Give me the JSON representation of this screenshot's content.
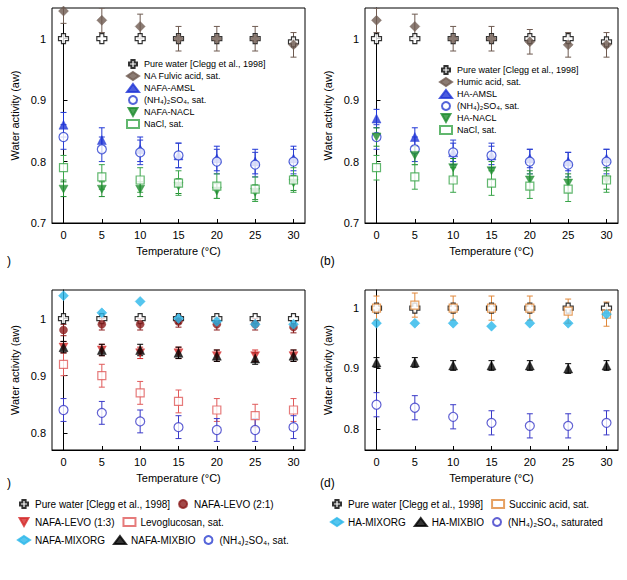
{
  "chart_data": [
    {
      "type": "scatter",
      "annotation": ")",
      "x_label": "Temperature (°C)",
      "y_label": "Water activity (aw)",
      "xlim": [
        -1.5,
        31.5
      ],
      "xticks": [
        0,
        5,
        10,
        15,
        20,
        25,
        30
      ],
      "ylim": [
        0.7,
        1.05
      ],
      "yticks": [
        0.7,
        0.8,
        0.9,
        1
      ],
      "grid": false,
      "legend": "right",
      "x": [
        0,
        5,
        10,
        15,
        20,
        25,
        30
      ],
      "series": [
        {
          "name": "Pure water [Clegg et al., 1998]",
          "color": "#000000",
          "marker": "cross-open",
          "values": [
            1.0,
            1.0,
            1.0,
            1.0,
            1.0,
            1.0,
            0.995
          ]
        },
        {
          "name": "NA Fulvic acid, sat.",
          "color": "#6e5a50",
          "marker": "diamond",
          "values": [
            1.045,
            1.03,
            1.02,
            1.0,
            1.0,
            1.0,
            0.99
          ],
          "errors": [
            0.02,
            0.02,
            0.02,
            0.02,
            0.02,
            0.02,
            0.02
          ]
        },
        {
          "name": "NAFA-AMSL",
          "color": "#1f35d6",
          "marker": "triangle",
          "values": [
            0.86,
            0.835,
            0.82,
            0.81,
            0.805,
            0.8,
            0.805
          ],
          "errors": [
            0.02,
            0.02,
            0.02,
            0.02,
            0.02,
            0.02,
            0.02
          ]
        },
        {
          "name": "(NH₄)₂SO₄, sat.",
          "color": "#2b3fd0",
          "marker": "circle-open",
          "values": [
            0.84,
            0.82,
            0.815,
            0.81,
            0.8,
            0.795,
            0.8
          ],
          "errors": [
            0.02,
            0.02,
            0.02,
            0.02,
            0.02,
            0.02,
            0.02
          ]
        },
        {
          "name": "NAFA-NACL",
          "color": "#1e8c2e",
          "marker": "triangle-down",
          "values": [
            0.755,
            0.755,
            0.755,
            0.76,
            0.752,
            0.75,
            0.765
          ],
          "errors": [
            0.012,
            0.012,
            0.012,
            0.012,
            0.012,
            0.012,
            0.012
          ]
        },
        {
          "name": "NaCl, sat.",
          "color": "#3aa54a",
          "marker": "square-open",
          "values": [
            0.79,
            0.775,
            0.77,
            0.765,
            0.76,
            0.755,
            0.77
          ],
          "errors": [
            0.02,
            0.02,
            0.02,
            0.02,
            0.02,
            0.02,
            0.02
          ]
        }
      ]
    },
    {
      "type": "scatter",
      "annotation": "(b)",
      "x_label": "Temperature (°C)",
      "y_label": "Water activity (aw)",
      "xlim": [
        -1.5,
        31.5
      ],
      "xticks": [
        0,
        5,
        10,
        15,
        20,
        25,
        30
      ],
      "ylim": [
        0.7,
        1.05
      ],
      "yticks": [
        0.7,
        0.8,
        0.9,
        1
      ],
      "grid": false,
      "legend": "right",
      "x": [
        0,
        5,
        10,
        15,
        20,
        25,
        30
      ],
      "series": [
        {
          "name": "Pure water [Clegg et al., 1998]",
          "color": "#000000",
          "marker": "cross-open",
          "values": [
            1.0,
            1.0,
            1.0,
            1.0,
            1.0,
            1.0,
            0.995
          ]
        },
        {
          "name": "Humic acid, sat.",
          "color": "#6e5a50",
          "marker": "diamond",
          "values": [
            1.03,
            1.02,
            1.0,
            1.0,
            0.995,
            0.99,
            0.99
          ],
          "errors": [
            0.02,
            0.02,
            0.02,
            0.02,
            0.02,
            0.02,
            0.02
          ]
        },
        {
          "name": "HA-AMSL",
          "color": "#1f35d6",
          "marker": "triangle",
          "values": [
            0.87,
            0.84,
            0.815,
            0.81,
            0.805,
            0.8,
            0.805
          ],
          "errors": [
            0.015,
            0.015,
            0.015,
            0.015,
            0.015,
            0.015,
            0.015
          ]
        },
        {
          "name": "(NH₄)₂SO₄, sat.",
          "color": "#2b3fd0",
          "marker": "circle-open",
          "values": [
            0.84,
            0.82,
            0.815,
            0.81,
            0.8,
            0.795,
            0.8
          ],
          "errors": [
            0.02,
            0.02,
            0.02,
            0.02,
            0.02,
            0.02,
            0.02
          ]
        },
        {
          "name": "HA-NACL",
          "color": "#1e8c2e",
          "marker": "triangle-down",
          "values": [
            0.84,
            0.81,
            0.79,
            0.785,
            0.77,
            0.765,
            0.77
          ],
          "errors": [
            0.015,
            0.015,
            0.015,
            0.015,
            0.015,
            0.015,
            0.015
          ]
        },
        {
          "name": "NaCl, sat.",
          "color": "#3aa54a",
          "marker": "square-open",
          "values": [
            0.79,
            0.775,
            0.77,
            0.765,
            0.76,
            0.755,
            0.77
          ],
          "errors": [
            0.02,
            0.02,
            0.02,
            0.02,
            0.02,
            0.02,
            0.02
          ]
        }
      ]
    },
    {
      "type": "scatter",
      "annotation": ")",
      "x_label": "Temperature (°C)",
      "y_label": "Water activity (aw)",
      "xlim": [
        -1.5,
        31.5
      ],
      "xticks": [
        0,
        5,
        10,
        15,
        20,
        25,
        30
      ],
      "ylim": [
        0.77,
        1.05
      ],
      "yticks": [
        0.8,
        0.9,
        1
      ],
      "grid": false,
      "legend": "bottom",
      "x": [
        0,
        5,
        10,
        15,
        20,
        25,
        30
      ],
      "series": [
        {
          "name": "Pure water [Clegg et al., 1998]",
          "color": "#000000",
          "marker": "cross-open",
          "values": [
            1.0,
            1.0,
            1.0,
            1.0,
            1.0,
            1.0,
            1.0
          ]
        },
        {
          "name": "NAFA-LEVO (2:1)",
          "color": "#8b1c1c",
          "marker": "circle",
          "values": [
            0.98,
            0.99,
            0.99,
            0.995,
            0.99,
            0.99,
            0.985
          ],
          "errors": [
            0.01,
            0.01,
            0.01,
            0.01,
            0.01,
            0.01,
            0.01
          ]
        },
        {
          "name": "NAFA-LEVO (1:3)",
          "color": "#d42a2a",
          "marker": "triangle-down",
          "values": [
            0.95,
            0.945,
            0.94,
            0.94,
            0.935,
            0.935,
            0.935
          ],
          "errors": [
            0.01,
            0.01,
            0.01,
            0.01,
            0.01,
            0.01,
            0.01
          ]
        },
        {
          "name": "Levoglucosan, sat.",
          "color": "#e05a5a",
          "marker": "square-open",
          "values": [
            0.92,
            0.9,
            0.87,
            0.855,
            0.84,
            0.83,
            0.84
          ],
          "errors": [
            0.02,
            0.02,
            0.02,
            0.02,
            0.02,
            0.02,
            0.02
          ]
        },
        {
          "name": "NAFA-MIXORG",
          "color": "#29b6ea",
          "marker": "diamond",
          "values": [
            1.04,
            1.01,
            1.03,
            1.0,
            0.995,
            0.99,
            0.99
          ]
        },
        {
          "name": "NAFA-MIXBIO",
          "color": "#000000",
          "marker": "triangle",
          "values": [
            0.95,
            0.945,
            0.945,
            0.94,
            0.935,
            0.93,
            0.935
          ],
          "errors": [
            0.01,
            0.01,
            0.01,
            0.01,
            0.01,
            0.01,
            0.01
          ]
        },
        {
          "name": "(NH₄)₂SO₄, sat.",
          "color": "#3a3ac8",
          "marker": "circle-open",
          "values": [
            0.84,
            0.835,
            0.82,
            0.81,
            0.805,
            0.805,
            0.81
          ],
          "errors": [
            0.02,
            0.02,
            0.02,
            0.02,
            0.02,
            0.02,
            0.02
          ]
        }
      ]
    },
    {
      "type": "scatter",
      "annotation": "(d)",
      "x_label": "Temperature (°C)",
      "y_label": "Water activity (aw)",
      "xlim": [
        -1.5,
        31.5
      ],
      "xticks": [
        0,
        5,
        10,
        15,
        20,
        25,
        30
      ],
      "ylim": [
        0.765,
        1.03
      ],
      "yticks": [
        0.8,
        0.9,
        1
      ],
      "grid": false,
      "legend": "bottom",
      "x": [
        0,
        5,
        10,
        15,
        20,
        25,
        30
      ],
      "series": [
        {
          "name": "Pure water [Clegg et al., 1998]",
          "color": "#000000",
          "marker": "cross-open",
          "values": [
            1.0,
            1.0,
            1.0,
            1.0,
            1.0,
            1.0,
            1.0
          ]
        },
        {
          "name": "Succinic acid, sat.",
          "color": "#e0883a",
          "marker": "square-open",
          "values": [
            1.0,
            1.005,
            1.0,
            1.0,
            1.0,
            0.995,
            0.99
          ],
          "errors": [
            0.02,
            0.02,
            0.02,
            0.02,
            0.02,
            0.02,
            0.02
          ]
        },
        {
          "name": "HA-MIXORG",
          "color": "#29b6ea",
          "marker": "diamond",
          "values": [
            0.975,
            0.975,
            0.975,
            0.97,
            0.975,
            0.975,
            0.99
          ]
        },
        {
          "name": "HA-MIXBIO",
          "color": "#000000",
          "marker": "triangle",
          "values": [
            0.91,
            0.91,
            0.905,
            0.905,
            0.905,
            0.9,
            0.905
          ],
          "errors": [
            0.008,
            0.008,
            0.008,
            0.008,
            0.008,
            0.008,
            0.008
          ]
        },
        {
          "name": "(NH₄)₂SO₄, saturated",
          "color": "#3a3ac8",
          "marker": "circle-open",
          "values": [
            0.84,
            0.835,
            0.82,
            0.81,
            0.805,
            0.805,
            0.81
          ],
          "errors": [
            0.02,
            0.02,
            0.02,
            0.02,
            0.02,
            0.02,
            0.02
          ]
        }
      ]
    }
  ]
}
